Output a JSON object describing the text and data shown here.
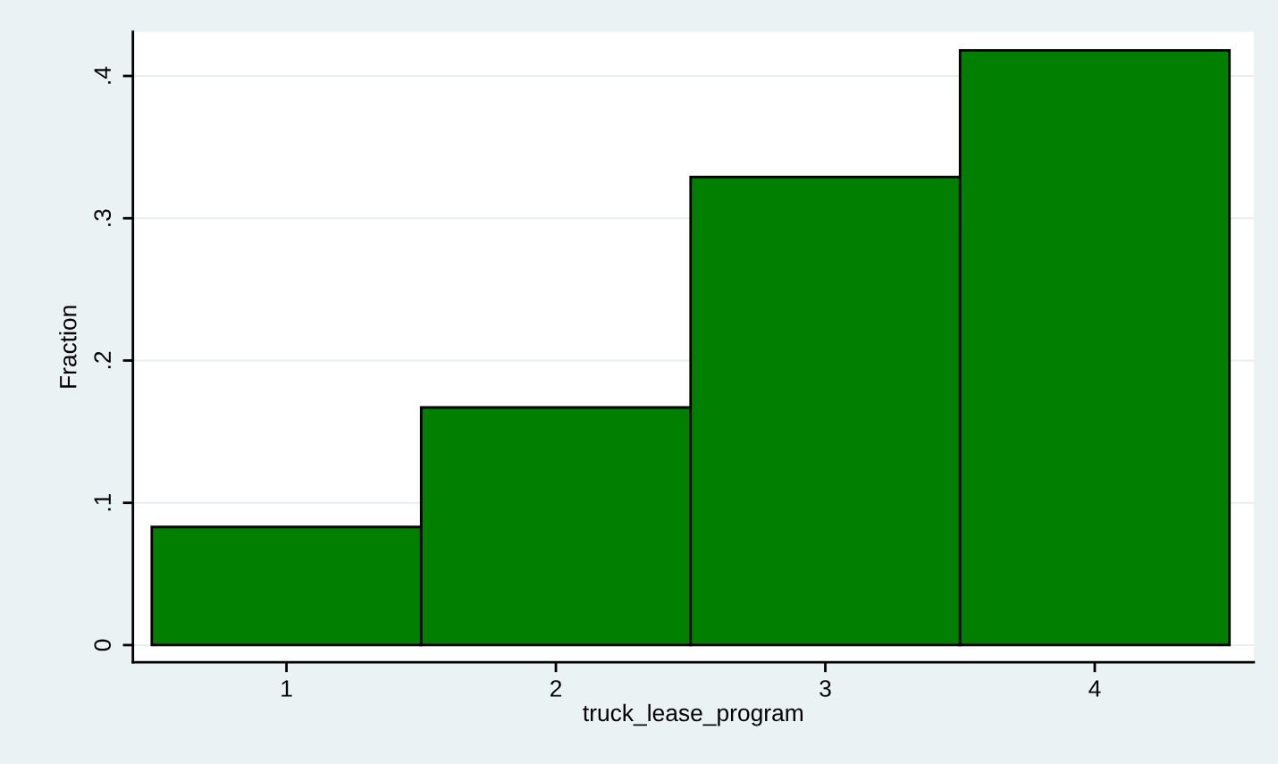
{
  "chart_data": {
    "type": "histogram",
    "xlabel": "truck_lease_program",
    "ylabel": "Fraction",
    "bins": [
      0.5,
      1.5,
      2.5,
      3.5,
      4.5
    ],
    "values": [
      0.083,
      0.167,
      0.329,
      0.418
    ],
    "color": "#007f00",
    "xlim": [
      0.43,
      4.59
    ],
    "xticks": [
      1,
      2,
      3,
      4
    ],
    "ylim": [
      -0.012,
      0.431
    ],
    "yticks": [
      0,
      {
        "value": 0.1,
        "label": ".1"
      },
      {
        "value": 0.2,
        "label": ".2"
      },
      {
        "value": 0.3,
        "label": ".3"
      },
      {
        "value": 0.4,
        "label": ".4"
      }
    ],
    "grid": "y"
  }
}
